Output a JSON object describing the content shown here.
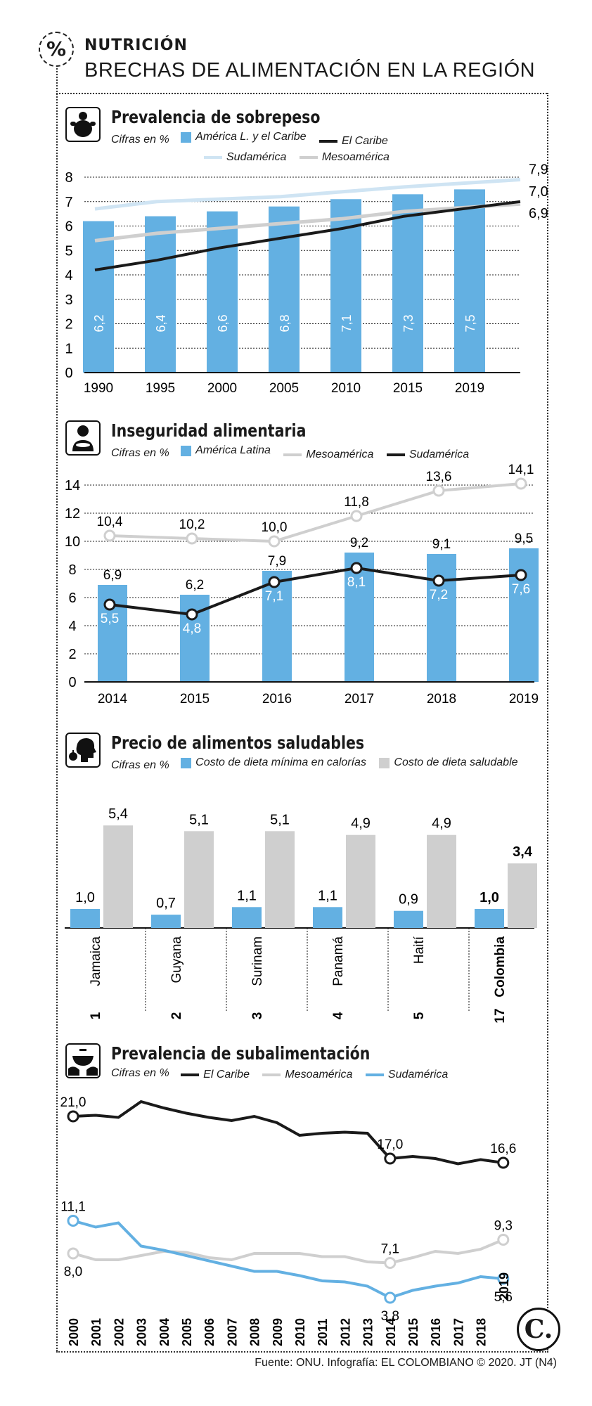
{
  "header": {
    "badge": "%",
    "kicker": "NUTRICIÓN",
    "headline": "BRECHAS DE ALIMENTACIÓN EN LA REGIÓN"
  },
  "colors": {
    "blue": "#63b0e2",
    "black": "#1a1a1a",
    "grey": "#cfcfcf",
    "lightblue": "#cfe4f3"
  },
  "source": "Fuente: ONU. Infografía: EL COLOMBIANO © 2020. JT (N4)",
  "logo": "C.",
  "chart_data": [
    {
      "id": "sobrepeso",
      "type": "bar+line",
      "title": "Prevalencia de sobrepeso",
      "cifras": "Cifras en %",
      "icon": "overweight-person-icon",
      "legend": [
        "América L. y el Caribe",
        "El Caribe",
        "Sudamérica",
        "Mesoamérica"
      ],
      "categories": [
        "1990",
        "1995",
        "2000",
        "2005",
        "2010",
        "2015",
        "2019"
      ],
      "ylim": [
        0,
        8
      ],
      "yticks": [
        "0",
        "1",
        "2",
        "3",
        "4",
        "5",
        "6",
        "7",
        "8"
      ],
      "bars": {
        "name": "América L. y el Caribe",
        "values": [
          6.2,
          6.4,
          6.6,
          6.8,
          7.1,
          7.3,
          7.5
        ],
        "labels": [
          "6,2",
          "6,4",
          "6,6",
          "6,8",
          "7,1",
          "7,3",
          "7,5"
        ]
      },
      "series": [
        {
          "name": "Sudamérica",
          "values": [
            6.7,
            7.0,
            7.1,
            7.2,
            7.4,
            7.6,
            7.9
          ]
        },
        {
          "name": "Mesoamérica",
          "values": [
            5.4,
            5.7,
            5.9,
            6.1,
            6.3,
            6.6,
            6.9
          ]
        },
        {
          "name": "El Caribe",
          "values": [
            4.2,
            4.6,
            5.1,
            5.5,
            5.9,
            6.4,
            7.0
          ]
        }
      ],
      "end_labels": [
        "7,9",
        "7,0",
        "6,9"
      ]
    },
    {
      "id": "inseguridad",
      "type": "bar+line",
      "title": "Inseguridad alimentaria",
      "cifras": "Cifras en %",
      "icon": "person-eating-icon",
      "legend": [
        "América Latina",
        "Mesoamérica",
        "Sudamérica"
      ],
      "categories": [
        "2014",
        "2015",
        "2016",
        "2017",
        "2018",
        "2019"
      ],
      "ylim": [
        0,
        14
      ],
      "yticks": [
        "0",
        "2",
        "4",
        "6",
        "8",
        "10",
        "12",
        "14"
      ],
      "bars": {
        "name": "América Latina",
        "values": [
          6.9,
          6.2,
          7.9,
          9.2,
          9.1,
          9.5
        ],
        "labels": [
          "6,9",
          "6,2",
          "7,9",
          "9,2",
          "9,1",
          "9,5"
        ]
      },
      "series": [
        {
          "name": "Mesoamérica",
          "values": [
            10.4,
            10.2,
            10.0,
            11.8,
            13.6,
            14.1
          ],
          "labels": [
            "10,4",
            "10,2",
            "10,0",
            "11,8",
            "13,6",
            "14,1"
          ]
        },
        {
          "name": "Sudamérica",
          "values": [
            5.5,
            4.8,
            7.1,
            8.1,
            7.2,
            7.6
          ],
          "labels": [
            "5,5",
            "4,8",
            "7,1",
            "8,1",
            "7,2",
            "7,6"
          ]
        }
      ]
    },
    {
      "id": "precio",
      "type": "bar",
      "title": "Precio de alimentos saludables",
      "cifras": "Cifras en %",
      "icon": "head-apple-icon",
      "legend": [
        "Costo de dieta mínima en calorías",
        "Costo de dieta saludable"
      ],
      "countries": [
        {
          "rank": "1",
          "name": "Jamaica",
          "min": 1.0,
          "min_label": "1,0",
          "healthy": 5.4,
          "healthy_label": "5,4"
        },
        {
          "rank": "2",
          "name": "Guyana",
          "min": 0.7,
          "min_label": "0,7",
          "healthy": 5.1,
          "healthy_label": "5,1"
        },
        {
          "rank": "3",
          "name": "Surinam",
          "min": 1.1,
          "min_label": "1,1",
          "healthy": 5.1,
          "healthy_label": "5,1"
        },
        {
          "rank": "4",
          "name": "Panamá",
          "min": 1.1,
          "min_label": "1,1",
          "healthy": 4.9,
          "healthy_label": "4,9"
        },
        {
          "rank": "5",
          "name": "Haití",
          "min": 0.9,
          "min_label": "0,9",
          "healthy": 4.9,
          "healthy_label": "4,9"
        },
        {
          "rank": "17",
          "name": "Colombia",
          "min": 1.0,
          "min_label": "1,0",
          "healthy": 3.4,
          "healthy_label": "3,4",
          "highlight": true
        }
      ]
    },
    {
      "id": "subalimentacion",
      "type": "line",
      "title": "Prevalencia de subalimentación",
      "cifras": "Cifras en %",
      "icon": "bowl-hands-icon",
      "legend": [
        "El Caribe",
        "Mesoamérica",
        "Sudamérica"
      ],
      "x": [
        "2000",
        "2001",
        "2002",
        "2003",
        "2004",
        "2005",
        "2006",
        "2007",
        "2008",
        "2009",
        "2010",
        "2011",
        "2012",
        "2013",
        "2014",
        "2015",
        "2016",
        "2017",
        "2018",
        "2019"
      ],
      "ylim": [
        3,
        23
      ],
      "series": [
        {
          "name": "El Caribe",
          "values": [
            21.0,
            21.1,
            20.9,
            22.4,
            21.8,
            21.3,
            20.9,
            20.6,
            21.0,
            20.4,
            19.2,
            19.4,
            19.5,
            19.4,
            17.0,
            17.2,
            17.0,
            16.5,
            16.9,
            16.6
          ],
          "labels": {
            "0": "21,0",
            "14": "17,0",
            "19": "16,6"
          }
        },
        {
          "name": "Mesoamérica",
          "values": [
            8.0,
            7.4,
            7.4,
            7.8,
            8.2,
            8.1,
            7.6,
            7.4,
            8.0,
            8.0,
            8.0,
            7.7,
            7.7,
            7.2,
            7.1,
            7.6,
            8.2,
            8.0,
            8.4,
            9.3
          ],
          "labels": {
            "0": "8,0",
            "14": "7,1",
            "19": "9,3"
          }
        },
        {
          "name": "Sudamérica",
          "values": [
            11.1,
            10.5,
            10.9,
            8.7,
            8.3,
            7.8,
            7.3,
            6.8,
            6.3,
            6.3,
            5.9,
            5.4,
            5.3,
            4.9,
            3.8,
            4.5,
            4.9,
            5.2,
            5.8,
            5.6
          ],
          "labels": {
            "0": "11,1",
            "14": "3,8",
            "19": "5,6"
          }
        }
      ]
    }
  ]
}
